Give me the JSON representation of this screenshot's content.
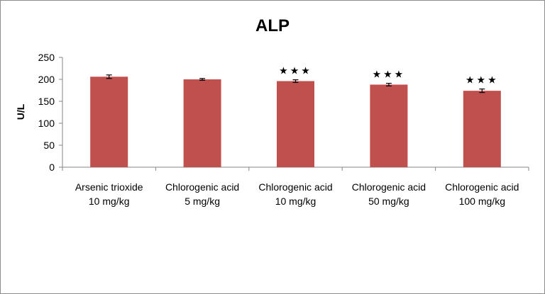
{
  "chart_data": {
    "type": "bar",
    "title": "ALP",
    "xlabel": "",
    "ylabel": "U/L",
    "ylim": [
      0,
      250
    ],
    "yticks": [
      0,
      50,
      100,
      150,
      200,
      250
    ],
    "grid": false,
    "legend": "none",
    "bar_color": "#c0504d",
    "categories": [
      [
        "Arsenic trioxide",
        "10 mg/kg"
      ],
      [
        "Chlorogenic acid",
        "5 mg/kg"
      ],
      [
        "Chlorogenic acid",
        "10 mg/kg"
      ],
      [
        "Chlorogenic acid",
        "50 mg/kg"
      ],
      [
        "Chlorogenic acid",
        "100 mg/kg"
      ]
    ],
    "values": [
      206,
      200,
      196,
      188,
      174
    ],
    "errors": [
      4,
      2,
      3,
      3,
      4
    ],
    "annotations": [
      "",
      "",
      "★★★",
      "★★★",
      "★★★"
    ]
  }
}
